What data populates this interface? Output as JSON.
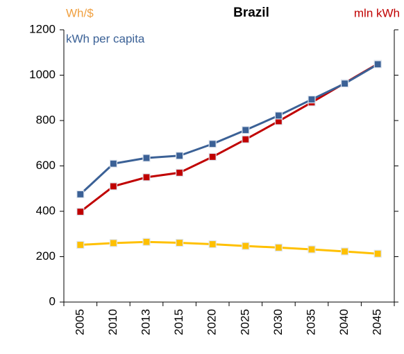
{
  "chart_data": {
    "type": "line",
    "title": "Brazil",
    "categories": [
      "2005",
      "2010",
      "2013",
      "2015",
      "2020",
      "2025",
      "2030",
      "2035",
      "2040",
      "2045"
    ],
    "series": [
      {
        "name": "kWh per capita",
        "color": "#3b6196",
        "values": [
          475,
          610,
          635,
          645,
          697,
          758,
          822,
          893,
          963,
          1048
        ]
      },
      {
        "name": "mln kWh",
        "color": "#c00000",
        "values": [
          398,
          510,
          550,
          570,
          640,
          717,
          797,
          880,
          965,
          1050
        ]
      },
      {
        "name": "Wh/$",
        "color": "#ffc000",
        "values": [
          252,
          260,
          265,
          261,
          255,
          247,
          240,
          232,
          223,
          213
        ]
      }
    ],
    "ylim": [
      0,
      1200
    ],
    "yticks": [
      0,
      200,
      400,
      600,
      800,
      1000,
      1200
    ],
    "grid": false
  }
}
